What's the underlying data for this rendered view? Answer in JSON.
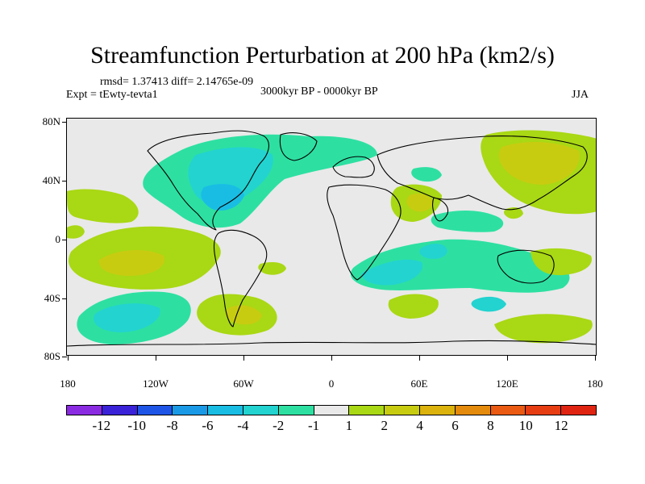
{
  "title": "Streamfunction Perturbation at 200 hPa (km2/s)",
  "stats": "rmsd= 1.37413 diff= 2.14765e-09",
  "experiment": "Expt = tEwty-tevta1",
  "period": "3000kyr BP - 0000kyr BP",
  "season": "JJA",
  "axes": {
    "lat_labels": [
      "80N",
      "40N",
      "0",
      "40S",
      "80S"
    ],
    "lon_labels": [
      "180",
      "120W",
      "60W",
      "0",
      "60E",
      "120E",
      "180"
    ]
  },
  "colorbar": {
    "labels": [
      "-12",
      "-10",
      "-8",
      "-6",
      "-4",
      "-2",
      "-1",
      "1",
      "2",
      "4",
      "6",
      "8",
      "10",
      "12"
    ],
    "colors": [
      "#8a2be2",
      "#3a22d8",
      "#1e55e6",
      "#1a9ae6",
      "#19bde4",
      "#22d3d0",
      "#2de0a2",
      "#e9e9e9",
      "#a9d814",
      "#c8cc10",
      "#dbb30c",
      "#e48a0c",
      "#ea5a12",
      "#e63d12",
      "#e02412"
    ]
  },
  "map_colors": {
    "background": "#e9e9e9",
    "neg1": "#2de0a2",
    "neg2": "#22d3d0",
    "neg3": "#19bde4",
    "pos1": "#a9d814",
    "pos2": "#c8cc10"
  }
}
